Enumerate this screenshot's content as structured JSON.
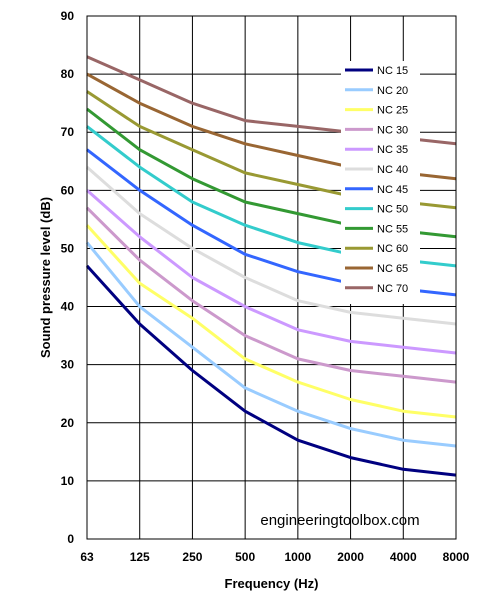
{
  "chart_data": {
    "type": "line",
    "title": "",
    "xlabel": "Frequency (Hz)",
    "ylabel": "Sound pressure level (dB)",
    "x": [
      "63",
      "125",
      "250",
      "500",
      "1000",
      "2000",
      "4000",
      "8000"
    ],
    "y_ticks": [
      "0",
      "10",
      "20",
      "30",
      "40",
      "50",
      "60",
      "70",
      "80",
      "90"
    ],
    "ylim": [
      0,
      90
    ],
    "grid": true,
    "legend_position": "top-right",
    "series": [
      {
        "name": "NC 15",
        "color": "#000080",
        "values": [
          47,
          37,
          29,
          22,
          17,
          14,
          12,
          11
        ]
      },
      {
        "name": "NC 20",
        "color": "#99CCFF",
        "values": [
          51,
          40,
          33,
          26,
          22,
          19,
          17,
          16
        ]
      },
      {
        "name": "NC 25",
        "color": "#FFFF66",
        "values": [
          54,
          44,
          38,
          31,
          27,
          24,
          22,
          21
        ]
      },
      {
        "name": "NC 30",
        "color": "#CC99CC",
        "values": [
          57,
          48,
          41,
          35,
          31,
          29,
          28,
          27
        ]
      },
      {
        "name": "NC 35",
        "color": "#CC99FF",
        "values": [
          60,
          52,
          45,
          40,
          36,
          34,
          33,
          32
        ]
      },
      {
        "name": "NC 40",
        "color": "#DDDDDD",
        "values": [
          64,
          56,
          50,
          45,
          41,
          39,
          38,
          37
        ]
      },
      {
        "name": "NC 45",
        "color": "#3366FF",
        "values": [
          67,
          60,
          54,
          49,
          46,
          44,
          43,
          42
        ]
      },
      {
        "name": "NC 50",
        "color": "#33CCCC",
        "values": [
          71,
          64,
          58,
          54,
          51,
          49,
          48,
          47
        ]
      },
      {
        "name": "NC 55",
        "color": "#339933",
        "values": [
          74,
          67,
          62,
          58,
          56,
          54,
          53,
          52
        ]
      },
      {
        "name": "NC 60",
        "color": "#999933",
        "values": [
          77,
          71,
          67,
          63,
          61,
          59,
          58,
          57
        ]
      },
      {
        "name": "NC 65",
        "color": "#996633",
        "values": [
          80,
          75,
          71,
          68,
          66,
          64,
          63,
          62
        ]
      },
      {
        "name": "NC 70",
        "color": "#996666",
        "values": [
          83,
          79,
          75,
          72,
          71,
          70,
          69,
          68
        ]
      }
    ]
  },
  "watermark": "engineeringtoolbox.com"
}
